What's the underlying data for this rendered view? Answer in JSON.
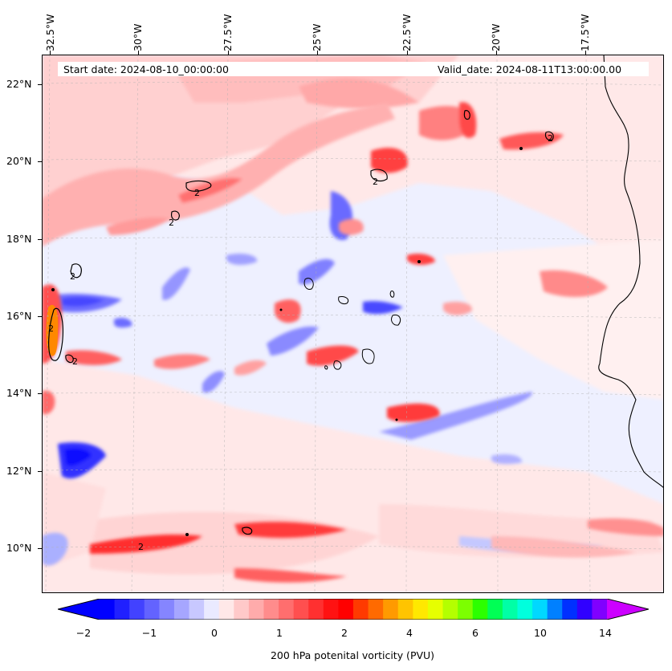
{
  "header": {
    "start_date": "Start date: 2024-08-10_00:00:00",
    "valid_date": "Valid_date: 2024-08-11T13:00:00.00"
  },
  "axes": {
    "lon_labels": [
      "32.5°W",
      "30°W",
      "27.5°W",
      "25°W",
      "22.5°W",
      "20°W",
      "17.5°W"
    ],
    "lat_labels": [
      "22°N",
      "20°N",
      "18°N",
      "16°N",
      "14°N",
      "12°N",
      "10°N"
    ]
  },
  "contour_label": "2",
  "colorbar": {
    "title": "200 hPa potenital vorticity (PVU)",
    "tick_labels": [
      "−2",
      "−1",
      "0",
      "1",
      "2",
      "4",
      "6",
      "10",
      "14"
    ],
    "colors": [
      "#0000ff",
      "#2020ff",
      "#4242ff",
      "#6363ff",
      "#8585ff",
      "#a6a6ff",
      "#c8c8ff",
      "#eaeaff",
      "#ffe8e8",
      "#ffc9c9",
      "#ffabab",
      "#ff8c8c",
      "#ff6e6e",
      "#ff4f4f",
      "#ff3030",
      "#ff1212",
      "#ff0000",
      "#ff3a00",
      "#ff6a00",
      "#ff9a00",
      "#ffc400",
      "#ffe800",
      "#e6ff00",
      "#b4ff00",
      "#7cff00",
      "#2cff00",
      "#00ff55",
      "#00ffa6",
      "#00ffdd",
      "#00d8ff",
      "#0080ff",
      "#0030ff",
      "#3000ff",
      "#8000ff"
    ],
    "under_color": "#0000ff",
    "over_color": "#cc00ff"
  },
  "map": {
    "background": "#eef0ff",
    "coast_color": "#000000"
  }
}
